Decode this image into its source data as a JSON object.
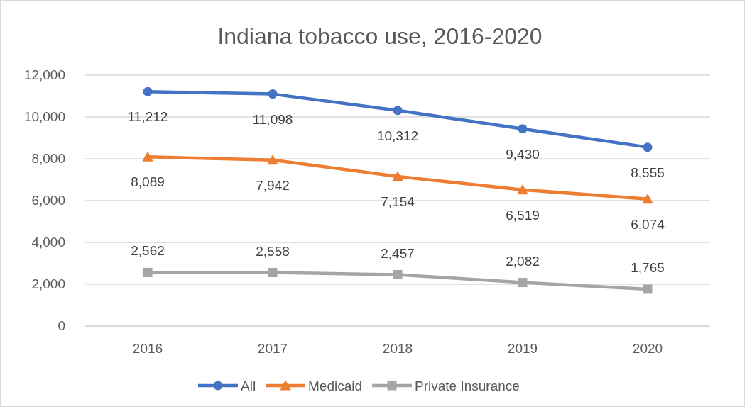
{
  "chart_data": {
    "type": "line",
    "title": "Indiana tobacco use, 2016-2020",
    "categories": [
      "2016",
      "2017",
      "2018",
      "2019",
      "2020"
    ],
    "series": [
      {
        "name": "All",
        "color": "#4472c4",
        "marker": "circle",
        "values": [
          11212,
          11098,
          10312,
          9430,
          8555
        ],
        "value_labels": [
          "11,212",
          "11,098",
          "10,312",
          "9,430",
          "8,555"
        ]
      },
      {
        "name": "Medicaid",
        "color": "#ed7d31",
        "marker": "triangle",
        "values": [
          8089,
          7942,
          7154,
          6519,
          6074
        ],
        "value_labels": [
          "8,089",
          "7,942",
          "7,154",
          "6,519",
          "6,074"
        ]
      },
      {
        "name": "Private Insurance",
        "color": "#a5a5a5",
        "marker": "square",
        "values": [
          2562,
          2558,
          2457,
          2082,
          1765
        ],
        "value_labels": [
          "2,562",
          "2,558",
          "2,457",
          "2,082",
          "1,765"
        ]
      }
    ],
    "ylim": [
      0,
      12000
    ],
    "yticks": [
      {
        "value": 0,
        "label": "0"
      },
      {
        "value": 2000,
        "label": "2,000"
      },
      {
        "value": 4000,
        "label": "4,000"
      },
      {
        "value": 6000,
        "label": "6,000"
      },
      {
        "value": 8000,
        "label": "8,000"
      },
      {
        "value": 10000,
        "label": "10,000"
      },
      {
        "value": 12000,
        "label": "12,000"
      }
    ],
    "grid": "y",
    "legend": "bottom",
    "line_style": "solid"
  }
}
